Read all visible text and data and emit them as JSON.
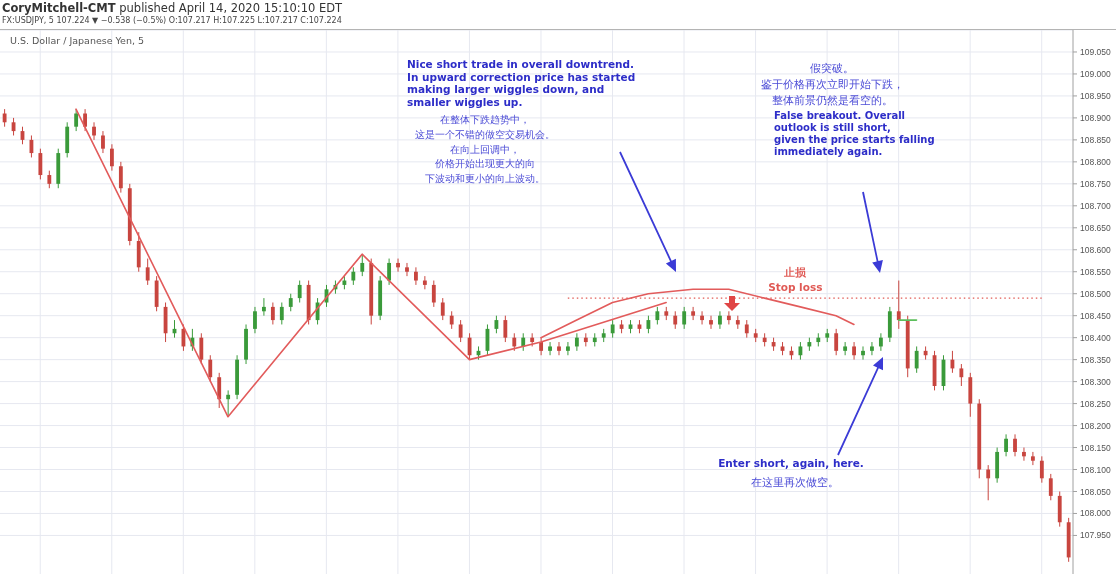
{
  "chart_data": {
    "type": "candlestick",
    "title": "U.S. Dollar / Japanese Yen, 5",
    "subtitle": "FX:USDJPY, 5 107.224 ▼ −0.538 (−0.5%) O:107.217 H:107.225 L:107.217 C:107.224",
    "annotations": [
      "CoryMitchell-CMT published April 14, 2020 15:10:10 EDT",
      "Nice short trade in overall downtrend.\nIn upward correction price has started\nmaking larger wiggles down, and\nsmaller wiggles up.",
      "在整体下跌趋势中，这是一个不错的做空交易机会。在向上回调中，价格开始出现更大的向下波动和更小的向上波动。",
      "假突破。鉴于价格再次立即开始下跌，整体前景仍然是看空的。",
      "False breakout. Overall\noutlook is still short,\ngiven the price starts falling\nimmediately again.",
      "Enter short, again, here.",
      "在这里再次做空。"
    ],
    "categories": [
      null,
      null,
      null,
      null,
      null,
      null,
      null,
      null,
      null,
      null,
      null,
      null,
      null,
      null,
      null,
      null,
      null,
      null,
      null,
      null,
      null,
      null,
      null,
      null,
      null,
      null,
      null,
      null,
      null,
      null,
      null,
      null,
      null,
      null,
      null,
      null,
      null,
      null,
      null,
      null,
      null,
      null,
      null,
      null,
      null,
      null,
      null,
      null,
      null,
      null,
      null,
      null,
      null,
      null,
      null,
      null,
      null,
      null,
      null,
      null,
      null,
      null,
      null,
      null,
      null,
      null,
      null,
      null,
      null,
      null,
      null,
      null,
      null,
      null,
      null,
      null,
      null,
      null,
      null,
      null,
      null,
      null,
      null,
      null,
      null,
      null,
      null,
      null,
      null,
      null,
      null,
      null,
      null,
      null,
      null,
      null,
      null,
      null,
      null,
      null,
      null,
      null,
      null,
      null,
      null,
      null,
      null,
      null,
      null,
      null,
      null,
      null,
      null,
      null,
      null,
      null,
      null,
      null,
      null,
      null
    ],
    "ohlc": [
      [
        108.91,
        108.92,
        108.88,
        108.89
      ],
      [
        108.89,
        108.9,
        108.86,
        108.87
      ],
      [
        108.87,
        108.88,
        108.84,
        108.85
      ],
      [
        108.85,
        108.86,
        108.81,
        108.82
      ],
      [
        108.82,
        108.83,
        108.76,
        108.77
      ],
      [
        108.77,
        108.78,
        108.74,
        108.75
      ],
      [
        108.75,
        108.83,
        108.74,
        108.82
      ],
      [
        108.82,
        108.89,
        108.81,
        108.88
      ],
      [
        108.88,
        108.92,
        108.87,
        108.91
      ],
      [
        108.91,
        108.92,
        108.87,
        108.88
      ],
      [
        108.88,
        108.89,
        108.85,
        108.86
      ],
      [
        108.86,
        108.87,
        108.82,
        108.83
      ],
      [
        108.83,
        108.84,
        108.78,
        108.79
      ],
      [
        108.79,
        108.8,
        108.73,
        108.74
      ],
      [
        108.74,
        108.75,
        108.61,
        108.62
      ],
      [
        108.62,
        108.64,
        108.55,
        108.56
      ],
      [
        108.56,
        108.58,
        108.52,
        108.53
      ],
      [
        108.53,
        108.54,
        108.46,
        108.47
      ],
      [
        108.47,
        108.48,
        108.39,
        108.41
      ],
      [
        108.41,
        108.44,
        108.4,
        108.42
      ],
      [
        108.42,
        108.43,
        108.37,
        108.38
      ],
      [
        108.38,
        108.42,
        108.37,
        108.4
      ],
      [
        108.4,
        108.41,
        108.34,
        108.35
      ],
      [
        108.35,
        108.36,
        108.3,
        108.31
      ],
      [
        108.31,
        108.32,
        108.24,
        108.26
      ],
      [
        108.26,
        108.28,
        108.22,
        108.27
      ],
      [
        108.27,
        108.36,
        108.26,
        108.35
      ],
      [
        108.35,
        108.43,
        108.34,
        108.42
      ],
      [
        108.42,
        108.47,
        108.41,
        108.46
      ],
      [
        108.46,
        108.49,
        108.45,
        108.47
      ],
      [
        108.47,
        108.48,
        108.43,
        108.44
      ],
      [
        108.44,
        108.48,
        108.43,
        108.47
      ],
      [
        108.47,
        108.5,
        108.46,
        108.49
      ],
      [
        108.49,
        108.53,
        108.48,
        108.52
      ],
      [
        108.52,
        108.53,
        108.43,
        108.44
      ],
      [
        108.44,
        108.49,
        108.43,
        108.48
      ],
      [
        108.48,
        108.52,
        108.47,
        108.51
      ],
      [
        108.51,
        108.53,
        108.5,
        108.52
      ],
      [
        108.52,
        108.54,
        108.51,
        108.53
      ],
      [
        108.53,
        108.56,
        108.52,
        108.55
      ],
      [
        108.55,
        108.59,
        108.54,
        108.57
      ],
      [
        108.57,
        108.58,
        108.43,
        108.45
      ],
      [
        108.45,
        108.54,
        108.44,
        108.53
      ],
      [
        108.53,
        108.58,
        108.52,
        108.57
      ],
      [
        108.57,
        108.58,
        108.55,
        108.56
      ],
      [
        108.56,
        108.57,
        108.54,
        108.55
      ],
      [
        108.55,
        108.56,
        108.52,
        108.53
      ],
      [
        108.53,
        108.54,
        108.51,
        108.52
      ],
      [
        108.52,
        108.53,
        108.47,
        108.48
      ],
      [
        108.48,
        108.49,
        108.44,
        108.45
      ],
      [
        108.45,
        108.46,
        108.42,
        108.43
      ],
      [
        108.43,
        108.44,
        108.39,
        108.4
      ],
      [
        108.4,
        108.41,
        108.35,
        108.36
      ],
      [
        108.36,
        108.38,
        108.35,
        108.37
      ],
      [
        108.37,
        108.43,
        108.36,
        108.42
      ],
      [
        108.42,
        108.45,
        108.41,
        108.44
      ],
      [
        108.44,
        108.45,
        108.39,
        108.4
      ],
      [
        108.4,
        108.41,
        108.37,
        108.38
      ],
      [
        108.38,
        108.41,
        108.37,
        108.4
      ],
      [
        108.4,
        108.41,
        108.38,
        108.39
      ],
      [
        108.39,
        108.4,
        108.36,
        108.37
      ],
      [
        108.37,
        108.39,
        108.36,
        108.38
      ],
      [
        108.38,
        108.39,
        108.36,
        108.37
      ],
      [
        108.37,
        108.39,
        108.36,
        108.38
      ],
      [
        108.38,
        108.41,
        108.37,
        108.4
      ],
      [
        108.4,
        108.41,
        108.38,
        108.39
      ],
      [
        108.39,
        108.41,
        108.38,
        108.4
      ],
      [
        108.4,
        108.42,
        108.39,
        108.41
      ],
      [
        108.41,
        108.44,
        108.4,
        108.43
      ],
      [
        108.43,
        108.44,
        108.41,
        108.42
      ],
      [
        108.42,
        108.44,
        108.41,
        108.43
      ],
      [
        108.43,
        108.44,
        108.41,
        108.42
      ],
      [
        108.42,
        108.45,
        108.41,
        108.44
      ],
      [
        108.44,
        108.47,
        108.43,
        108.46
      ],
      [
        108.46,
        108.47,
        108.44,
        108.45
      ],
      [
        108.45,
        108.46,
        108.42,
        108.43
      ],
      [
        108.43,
        108.47,
        108.42,
        108.46
      ],
      [
        108.46,
        108.47,
        108.44,
        108.45
      ],
      [
        108.45,
        108.46,
        108.43,
        108.44
      ],
      [
        108.44,
        108.45,
        108.42,
        108.43
      ],
      [
        108.43,
        108.46,
        108.42,
        108.45
      ],
      [
        108.45,
        108.46,
        108.43,
        108.44
      ],
      [
        108.44,
        108.45,
        108.42,
        108.43
      ],
      [
        108.43,
        108.44,
        108.4,
        108.41
      ],
      [
        108.41,
        108.42,
        108.39,
        108.4
      ],
      [
        108.4,
        108.41,
        108.38,
        108.39
      ],
      [
        108.39,
        108.4,
        108.37,
        108.38
      ],
      [
        108.38,
        108.39,
        108.36,
        108.37
      ],
      [
        108.37,
        108.38,
        108.35,
        108.36
      ],
      [
        108.36,
        108.39,
        108.35,
        108.38
      ],
      [
        108.38,
        108.4,
        108.37,
        108.39
      ],
      [
        108.39,
        108.41,
        108.38,
        108.4
      ],
      [
        108.4,
        108.42,
        108.39,
        108.41
      ],
      [
        108.41,
        108.42,
        108.36,
        108.37
      ],
      [
        108.37,
        108.39,
        108.36,
        108.38
      ],
      [
        108.38,
        108.39,
        108.35,
        108.36
      ],
      [
        108.36,
        108.38,
        108.35,
        108.37
      ],
      [
        108.37,
        108.39,
        108.36,
        108.38
      ],
      [
        108.38,
        108.41,
        108.37,
        108.4
      ],
      [
        108.4,
        108.47,
        108.39,
        108.46
      ],
      [
        108.46,
        108.53,
        108.42,
        108.44
      ],
      [
        108.44,
        108.45,
        108.31,
        108.33
      ],
      [
        108.33,
        108.38,
        108.32,
        108.37
      ],
      [
        108.37,
        108.38,
        108.35,
        108.36
      ],
      [
        108.36,
        108.37,
        108.28,
        108.29
      ],
      [
        108.29,
        108.36,
        108.28,
        108.35
      ],
      [
        108.35,
        108.37,
        108.32,
        108.33
      ],
      [
        108.33,
        108.34,
        108.29,
        108.31
      ],
      [
        108.31,
        108.32,
        108.22,
        108.25
      ],
      [
        108.25,
        108.26,
        108.08,
        108.1
      ],
      [
        108.1,
        108.11,
        108.03,
        108.08
      ],
      [
        108.08,
        108.15,
        108.07,
        108.14
      ],
      [
        108.14,
        108.18,
        108.13,
        108.17
      ],
      [
        108.17,
        108.18,
        108.13,
        108.14
      ],
      [
        108.14,
        108.15,
        108.12,
        108.13
      ],
      [
        108.13,
        108.14,
        108.11,
        108.12
      ],
      [
        108.12,
        108.13,
        108.07,
        108.08
      ],
      [
        108.08,
        108.09,
        108.03,
        108.04
      ],
      [
        108.04,
        108.05,
        107.97,
        107.98
      ],
      [
        107.98,
        107.99,
        107.89,
        107.9
      ]
    ],
    "colors": [
      "#c8453f",
      "#c8453f",
      "#c8453f",
      "#c8453f",
      "#c8453f",
      "#c8453f",
      "#3a9a3a",
      "#3a9a3a",
      "#3a9a3a",
      "#c8453f",
      "#c8453f",
      "#c8453f",
      "#c8453f",
      "#c8453f",
      "#c8453f",
      "#c8453f",
      "#c8453f",
      "#c8453f",
      "#c8453f",
      "#3a9a3a",
      "#c8453f",
      "#3a9a3a",
      "#c8453f",
      "#c8453f",
      "#c8453f",
      "#3a9a3a",
      "#3a9a3a",
      "#3a9a3a",
      "#3a9a3a",
      "#3a9a3a",
      "#c8453f",
      "#3a9a3a",
      "#3a9a3a",
      "#3a9a3a",
      "#c8453f",
      "#3a9a3a",
      "#3a9a3a",
      "#3a9a3a",
      "#3a9a3a",
      "#3a9a3a",
      "#3a9a3a",
      "#c8453f",
      "#3a9a3a",
      "#3a9a3a",
      "#c8453f",
      "#c8453f",
      "#c8453f",
      "#c8453f",
      "#c8453f",
      "#c8453f",
      "#c8453f",
      "#c8453f",
      "#c8453f",
      "#3a9a3a",
      "#3a9a3a",
      "#3a9a3a",
      "#c8453f",
      "#c8453f",
      "#3a9a3a",
      "#c8453f",
      "#c8453f",
      "#3a9a3a",
      "#c8453f",
      "#3a9a3a",
      "#3a9a3a",
      "#c8453f",
      "#3a9a3a",
      "#3a9a3a",
      "#3a9a3a",
      "#c8453f",
      "#3a9a3a",
      "#c8453f",
      "#3a9a3a",
      "#3a9a3a",
      "#c8453f",
      "#c8453f",
      "#3a9a3a",
      "#c8453f",
      "#c8453f",
      "#c8453f",
      "#3a9a3a",
      "#c8453f",
      "#c8453f",
      "#c8453f",
      "#c8453f",
      "#c8453f",
      "#c8453f",
      "#c8453f",
      "#c8453f",
      "#3a9a3a",
      "#3a9a3a",
      "#3a9a3a",
      "#3a9a3a",
      "#c8453f",
      "#3a9a3a",
      "#c8453f",
      "#3a9a3a",
      "#3a9a3a",
      "#3a9a3a",
      "#3a9a3a",
      "#c8453f",
      "#c8453f",
      "#3a9a3a",
      "#c8453f",
      "#c8453f",
      "#3a9a3a",
      "#c8453f",
      "#c8453f",
      "#c8453f",
      "#c8453f",
      "#c8453f",
      "#3a9a3a",
      "#3a9a3a",
      "#c8453f",
      "#c8453f",
      "#c8453f",
      "#c8453f",
      "#c8453f",
      "#c8453f",
      "#c8453f"
    ],
    "series": [
      {
        "type": "line",
        "color": "#e25b5b",
        "values": [
          null,
          null,
          null,
          null,
          null,
          null,
          null,
          null,
          108.92,
          null,
          null,
          null,
          null,
          null,
          null,
          null,
          null,
          null,
          null,
          null,
          null,
          null,
          null,
          null,
          null,
          108.22,
          null,
          null,
          null,
          null,
          null,
          null,
          null,
          null,
          null,
          null,
          null,
          null,
          null,
          null,
          108.59,
          null,
          null,
          null,
          null,
          null,
          null,
          null,
          null,
          null,
          null,
          null,
          108.35,
          null,
          null,
          null,
          null,
          null,
          null,
          null,
          108.39,
          null,
          null,
          null,
          null,
          null,
          null,
          null,
          null,
          null,
          null,
          null,
          null,
          null,
          108.48,
          null,
          null,
          null,
          null,
          null,
          null,
          null,
          null,
          null,
          null,
          null,
          null,
          null,
          null,
          null,
          null,
          null,
          null,
          null,
          null,
          null,
          null,
          null,
          null,
          null,
          null,
          null,
          null,
          null,
          null,
          null,
          null,
          null,
          null,
          null,
          null,
          null,
          null,
          null,
          null,
          null,
          null,
          null,
          null,
          null
        ]
      },
      {
        "type": "line",
        "color": "#e25b5b",
        "values": [
          null,
          null,
          null,
          null,
          null,
          null,
          null,
          null,
          null,
          null,
          null,
          null,
          null,
          null,
          null,
          null,
          null,
          null,
          null,
          null,
          null,
          null,
          null,
          null,
          null,
          null,
          null,
          null,
          null,
          null,
          null,
          null,
          null,
          null,
          null,
          null,
          null,
          null,
          null,
          null,
          null,
          null,
          null,
          null,
          null,
          null,
          null,
          null,
          null,
          null,
          null,
          null,
          null,
          null,
          null,
          null,
          null,
          null,
          null,
          null,
          108.4,
          null,
          null,
          null,
          108.44,
          null,
          null,
          null,
          108.48,
          null,
          null,
          null,
          108.5,
          null,
          null,
          null,
          null,
          108.51,
          null,
          null,
          null,
          108.51,
          null,
          null,
          null,
          108.49,
          null,
          null,
          null,
          108.47,
          null,
          null,
          null,
          108.45,
          null,
          108.43,
          null,
          null,
          null,
          null,
          null,
          null,
          null,
          null,
          null,
          null,
          null,
          null,
          null,
          null,
          null,
          null,
          null,
          null,
          null,
          null,
          null,
          null,
          null,
          null
        ]
      },
      {
        "type": "line",
        "color": "#5cbf5c",
        "values": [
          null,
          null,
          null,
          null,
          null,
          null,
          null,
          null,
          null,
          null,
          null,
          null,
          null,
          null,
          null,
          null,
          null,
          null,
          null,
          null,
          null,
          null,
          null,
          null,
          null,
          null,
          null,
          null,
          null,
          null,
          null,
          null,
          null,
          null,
          null,
          null,
          null,
          null,
          null,
          null,
          null,
          null,
          null,
          null,
          null,
          null,
          null,
          null,
          null,
          null,
          null,
          null,
          null,
          null,
          null,
          null,
          null,
          null,
          null,
          null,
          null,
          null,
          null,
          null,
          null,
          null,
          null,
          null,
          null,
          null,
          null,
          null,
          null,
          null,
          null,
          null,
          null,
          null,
          null,
          null,
          null,
          null,
          null,
          null,
          null,
          null,
          null,
          null,
          null,
          null,
          null,
          null,
          null,
          null,
          null,
          null,
          null,
          null,
          null,
          null,
          108.44,
          108.44,
          108.44,
          null,
          null,
          null,
          null,
          null,
          null,
          null,
          null,
          null,
          null,
          null,
          null,
          null,
          null,
          null,
          null,
          null
        ]
      }
    ],
    "ref_lines": [
      {
        "axis": "y",
        "value": 108.49,
        "label": "止损\nStop loss",
        "color": "#e05a55",
        "line_style": "dotted"
      }
    ],
    "ylim": [
      107.86,
      109.1
    ],
    "yticks": [
      {
        "value": 107.95,
        "label": "107.950"
      },
      {
        "value": 108.0,
        "label": "108.000"
      },
      {
        "value": 108.05,
        "label": "108.050"
      },
      {
        "value": 108.1,
        "label": "108.100"
      },
      {
        "value": 108.15,
        "label": "108.150"
      },
      {
        "value": 108.2,
        "label": "108.200"
      },
      {
        "value": 108.25,
        "label": "108.250"
      },
      {
        "value": 108.3,
        "label": "108.300"
      },
      {
        "value": 108.35,
        "label": "108.350"
      },
      {
        "value": 108.4,
        "label": "108.400"
      },
      {
        "value": 108.45,
        "label": "108.450"
      },
      {
        "value": 108.5,
        "label": "108.500"
      },
      {
        "value": 108.55,
        "label": "108.550"
      },
      {
        "value": 108.6,
        "label": "108.600"
      },
      {
        "value": 108.65,
        "label": "108.650"
      },
      {
        "value": 108.7,
        "label": "108.700"
      },
      {
        "value": 108.75,
        "label": "108.750"
      },
      {
        "value": 108.8,
        "label": "108.800"
      },
      {
        "value": 108.85,
        "label": "108.850"
      },
      {
        "value": 108.9,
        "label": "108.900"
      },
      {
        "value": 108.95,
        "label": "108.950"
      },
      {
        "value": 109.0,
        "label": "109.000"
      },
      {
        "value": 109.05,
        "label": "109.050"
      }
    ],
    "grid": true,
    "tick_labels": "y"
  }
}
